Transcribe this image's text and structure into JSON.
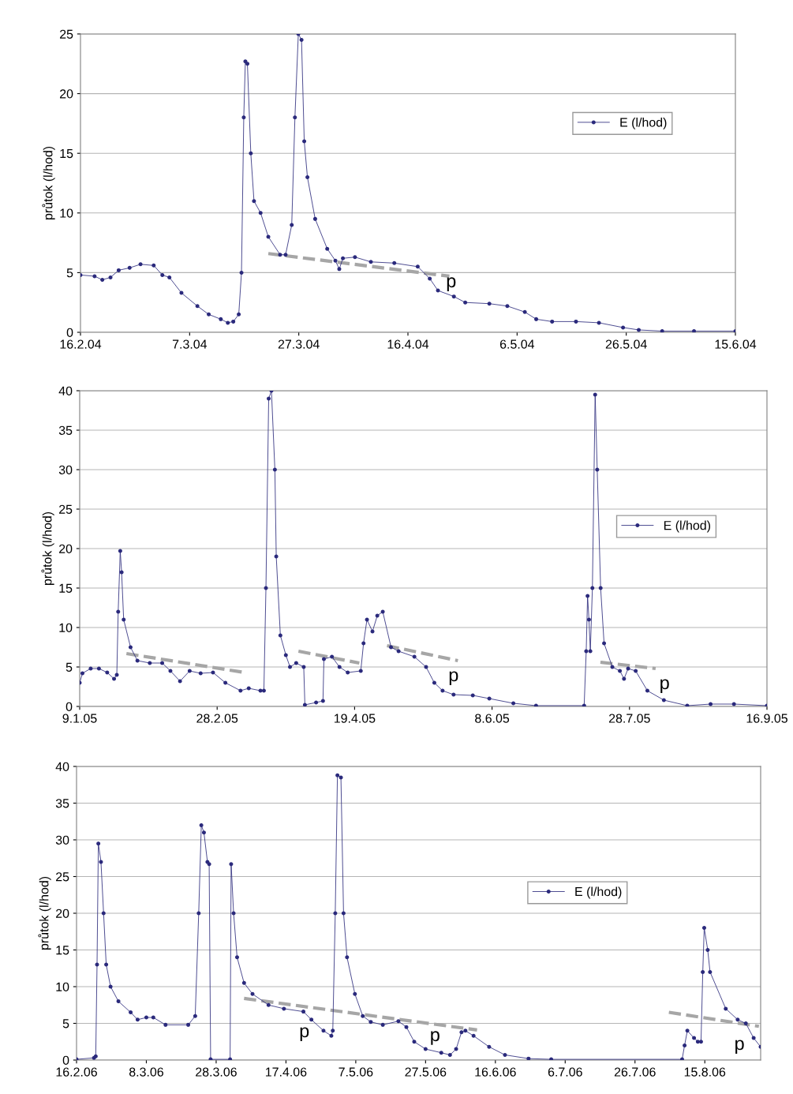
{
  "chart_data": [
    {
      "type": "line",
      "ylabel": "průtok (l/hod)",
      "xlim": [
        "2004-02-16",
        "2004-06-15"
      ],
      "ylim": [
        0,
        25
      ],
      "yticks": [
        0,
        5,
        10,
        15,
        20,
        25
      ],
      "xticks": [
        {
          "value": "2004-02-16",
          "label": "16.2.04"
        },
        {
          "value": "2004-03-07",
          "label": "7.3.04"
        },
        {
          "value": "2004-03-27",
          "label": "27.3.04"
        },
        {
          "value": "2004-04-16",
          "label": "16.4.04"
        },
        {
          "value": "2004-05-06",
          "label": "6.5.04"
        },
        {
          "value": "2004-05-26",
          "label": "26.5.04"
        },
        {
          "value": "2004-06-15",
          "label": "15.6.04"
        }
      ],
      "grid": "y",
      "legend": "right",
      "marker": "circle",
      "line_style": "solid",
      "series": [
        {
          "name": "E (l/hod)",
          "color": "#2b2a7c",
          "x": [
            "2004-02-16",
            "2004-02-18T14:00",
            "2004-02-20",
            "2004-02-21T12:00",
            "2004-02-23",
            "2004-02-25",
            "2004-02-27",
            "2004-02-29T10:00",
            "2004-03-02",
            "2004-03-03T07:00",
            "2004-03-05T12:00",
            "2004-03-08T10:00",
            "2004-03-10T12:00",
            "2004-03-12T17:00",
            "2004-03-14",
            "2004-03-15",
            "2004-03-16",
            "2004-03-16T12:00",
            "2004-03-16T22:00",
            "2004-03-17T05:00",
            "2004-03-17T14:00",
            "2004-03-18T05:00",
            "2004-03-18T19:00",
            "2004-03-20",
            "2004-03-21T10:00",
            "2004-03-23T14:00",
            "2004-03-24T14:00",
            "2004-03-25T17:00",
            "2004-03-26T07:00",
            "2004-03-26T22:00",
            "2004-03-27T12:00",
            "2004-03-28",
            "2004-03-28T14:00",
            "2004-03-30",
            "2004-04-01T05:00",
            "2004-04-02T17:00",
            "2004-04-03T10:00",
            "2004-04-04T02:00",
            "2004-04-06T07:00",
            "2004-04-09T05:00",
            "2004-04-13T12:00",
            "2004-04-17T19:00",
            "2004-04-20",
            "2004-04-21T12:00",
            "2004-04-24T10:00",
            "2004-04-26T12:00",
            "2004-04-30T22:00",
            "2004-05-04T05:00",
            "2004-05-07T10:00",
            "2004-05-09T12:00",
            "2004-05-12T10:00",
            "2004-05-16T19:00",
            "2004-05-21",
            "2004-05-25T10:00",
            "2004-05-28T07:00",
            "2004-06-01T14:00",
            "2004-06-07T10:00",
            "2004-06-15"
          ],
          "values": [
            4.8,
            4.7,
            4.4,
            4.6,
            5.2,
            5.4,
            5.7,
            5.6,
            4.8,
            4.6,
            3.3,
            2.2,
            1.5,
            1.1,
            0.8,
            0.9,
            1.5,
            5,
            18,
            22.7,
            22.5,
            15,
            11,
            10,
            8,
            6.5,
            6.5,
            9,
            18,
            25,
            24.5,
            16,
            13,
            9.5,
            7,
            6,
            5.3,
            6.2,
            6.3,
            5.9,
            5.8,
            5.5,
            4.5,
            3.5,
            3,
            2.5,
            2.4,
            2.2,
            1.7,
            1.1,
            0.9,
            0.9,
            0.8,
            0.4,
            0.2,
            0.1,
            0.1,
            0.1
          ]
        },
        {
          "type": "line",
          "color": "#a6a6a6",
          "marker": "none",
          "line_style": "dashed",
          "x": [
            "2004-03-21T10:00",
            "2004-04-23T14:00"
          ],
          "values": [
            6.6,
            4.7
          ]
        }
      ],
      "annotations": [
        "p"
      ]
    },
    {
      "type": "line",
      "ylabel": "průtok (l/hod)",
      "xlim": [
        "2005-01-09",
        "2005-09-16"
      ],
      "ylim": [
        0,
        40
      ],
      "yticks": [
        0,
        5,
        10,
        15,
        20,
        25,
        30,
        35,
        40
      ],
      "xticks": [
        {
          "value": "2005-01-09",
          "label": "9.1.05"
        },
        {
          "value": "2005-02-28",
          "label": "28.2.05"
        },
        {
          "value": "2005-04-19",
          "label": "19.4.05"
        },
        {
          "value": "2005-06-08",
          "label": "8.6.05"
        },
        {
          "value": "2005-07-28",
          "label": "28.7.05"
        },
        {
          "value": "2005-09-16",
          "label": "16.9.05"
        }
      ],
      "grid": "y",
      "legend": "right",
      "marker": "circle",
      "line_style": "solid",
      "series": [
        {
          "name": "E (l/hod)",
          "color": "#2b2a7c",
          "x": [
            "2005-01-09",
            "2005-01-10",
            "2005-01-13",
            "2005-01-16",
            "2005-01-19",
            "2005-01-21T12:00",
            "2005-01-22T12:00",
            "2005-01-23",
            "2005-01-23T18:00",
            "2005-01-24T06:00",
            "2005-01-25",
            "2005-01-27T12:00",
            "2005-01-30",
            "2005-02-03T12:00",
            "2005-02-08",
            "2005-02-11",
            "2005-02-14T12:00",
            "2005-02-18",
            "2005-02-22",
            "2005-02-26T12:00",
            "2005-03-03",
            "2005-03-08T12:00",
            "2005-03-11T12:00",
            "2005-03-15T18:00",
            "2005-03-17",
            "2005-03-17T18:00",
            "2005-03-18T18:00",
            "2005-03-19T18:00",
            "2005-03-21",
            "2005-03-21T12:00",
            "2005-03-23",
            "2005-03-25",
            "2005-03-26T12:00",
            "2005-03-28T18:00",
            "2005-03-31T12:00",
            "2005-03-31T22:00",
            "2005-04-05",
            "2005-04-07T12:00",
            "2005-04-07T20:00",
            "2005-04-10T18:00",
            "2005-04-13T12:00",
            "2005-04-16T12:00",
            "2005-04-21T06:00",
            "2005-04-22T06:00",
            "2005-04-23T12:00",
            "2005-04-25T12:00",
            "2005-04-27T06:00",
            "2005-04-29T06:00",
            "2005-05-02T06:00",
            "2005-05-05",
            "2005-05-10T18:00",
            "2005-05-15",
            "2005-05-18",
            "2005-05-21",
            "2005-05-25",
            "2005-06-01",
            "2005-06-07",
            "2005-06-15T18:00",
            "2005-06-24",
            "2005-07-11T12:00",
            "2005-07-12T06:00",
            "2005-07-12T18:00",
            "2005-07-13T06:00",
            "2005-07-13T18:00",
            "2005-07-14T12:00",
            "2005-07-15T12:00",
            "2005-07-16T06:00",
            "2005-07-17T12:00",
            "2005-07-18T18:00",
            "2005-07-21T18:00",
            "2005-07-24T12:00",
            "2005-07-26",
            "2005-07-27T12:00",
            "2005-07-30T06:00",
            "2005-08-03T12:00",
            "2005-08-09T12:00",
            "2005-08-18",
            "2005-08-26T12:00",
            "2005-09-04",
            "2005-09-16"
          ],
          "values": [
            3,
            4.2,
            4.8,
            4.8,
            4.3,
            3.5,
            4,
            12,
            19.7,
            17,
            11,
            7.5,
            5.8,
            5.5,
            5.5,
            4.5,
            3.2,
            4.5,
            4.2,
            4.3,
            3,
            2,
            2.3,
            2,
            2,
            15,
            39,
            40,
            30,
            19,
            9,
            6.5,
            5,
            5.5,
            5,
            0.2,
            0.5,
            0.7,
            6,
            6.3,
            5,
            4.3,
            4.5,
            8,
            11,
            9.5,
            11.5,
            12,
            7.5,
            7,
            6.3,
            5,
            3,
            2,
            1.5,
            1.4,
            1,
            0.4,
            0.1,
            0.1,
            7,
            14,
            11,
            7,
            15,
            39.5,
            30,
            15,
            8,
            5,
            4.5,
            3.5,
            4.8,
            4.5,
            2,
            0.8,
            0.1,
            0.3,
            0.3,
            0.1
          ]
        },
        {
          "type": "line",
          "color": "#a6a6a6",
          "marker": "none",
          "line_style": "dashed",
          "x": [
            "2005-01-26",
            "2005-03-10"
          ],
          "values": [
            6.7,
            4.3
          ]
        },
        {
          "type": "line",
          "color": "#a6a6a6",
          "marker": "none",
          "line_style": "dashed",
          "x": [
            "2005-03-29T14:00",
            "2005-04-20T17:00"
          ],
          "values": [
            7,
            5.5
          ]
        },
        {
          "type": "line",
          "color": "#a6a6a6",
          "marker": "none",
          "line_style": "dashed",
          "x": [
            "2005-04-30T19:00",
            "2005-05-26T14:00"
          ],
          "values": [
            7.7,
            5.8
          ]
        },
        {
          "type": "line",
          "color": "#a6a6a6",
          "marker": "none",
          "line_style": "dashed",
          "x": [
            "2005-07-17T10:00",
            "2005-08-06T12:00"
          ],
          "values": [
            5.6,
            4.8
          ]
        }
      ],
      "annotations": [
        "p",
        "p"
      ]
    },
    {
      "type": "line",
      "ylabel": "průtok (l/hod)",
      "xlim": [
        "2006-02-16",
        "2006-08-31"
      ],
      "ylim": [
        0,
        40
      ],
      "yticks": [
        0,
        5,
        10,
        15,
        20,
        25,
        30,
        35,
        40
      ],
      "xticks": [
        {
          "value": "2006-02-16",
          "label": "16.2.06"
        },
        {
          "value": "2006-03-08",
          "label": "8.3.06"
        },
        {
          "value": "2006-03-28",
          "label": "28.3.06"
        },
        {
          "value": "2006-04-17",
          "label": "17.4.06"
        },
        {
          "value": "2006-05-07",
          "label": "7.5.06"
        },
        {
          "value": "2006-05-27",
          "label": "27.5.06"
        },
        {
          "value": "2006-06-16",
          "label": "16.6.06"
        },
        {
          "value": "2006-07-06",
          "label": "6.7.06"
        },
        {
          "value": "2006-07-26",
          "label": "26.7.06"
        },
        {
          "value": "2006-08-15",
          "label": "15.8.06"
        }
      ],
      "grid": "y",
      "legend": "right",
      "marker": "circle",
      "line_style": "solid",
      "series": [
        {
          "name": "E (l/hod)",
          "color": "#2b2a7c",
          "x": [
            "2006-02-16",
            "2006-02-21",
            "2006-02-21T12:00",
            "2006-02-21T21:00",
            "2006-02-22T06:00",
            "2006-02-23",
            "2006-02-23T18:00",
            "2006-02-24T12:00",
            "2006-02-25T18:00",
            "2006-02-28",
            "2006-03-03T12:00",
            "2006-03-05T12:00",
            "2006-03-08",
            "2006-03-10",
            "2006-03-13T12:00",
            "2006-03-20",
            "2006-03-22",
            "2006-03-23",
            "2006-03-23T18:00",
            "2006-03-24T12:00",
            "2006-03-25T12:00",
            "2006-03-26",
            "2006-03-26T10:00",
            "2006-04-01",
            "2006-04-01T07:00",
            "2006-04-02",
            "2006-04-03",
            "2006-04-05",
            "2006-04-07T10:00",
            "2006-04-12",
            "2006-04-16T10:00",
            "2006-04-22",
            "2006-04-24T07:00",
            "2006-04-27T18:00",
            "2006-04-30",
            "2006-04-30T10:00",
            "2006-05-01T03:00",
            "2006-05-01T18:00",
            "2006-05-02T18:00",
            "2006-05-03T12:00",
            "2006-05-04T12:00",
            "2006-05-06T18:00",
            "2006-05-09",
            "2006-05-11T07:00",
            "2006-05-14T18:00",
            "2006-05-19T05:00",
            "2006-05-21T12:00",
            "2006-05-23T18:00",
            "2006-05-27",
            "2006-05-31T12:00",
            "2006-06-03",
            "2006-06-04T18:00",
            "2006-06-06T07:00",
            "2006-06-07T10:00",
            "2006-06-09T18:00",
            "2006-06-14T05:00",
            "2006-06-18T18:00",
            "2006-06-25T12:00",
            "2006-07-02",
            "2006-08-08T12:00",
            "2006-08-09T05:00",
            "2006-08-10",
            "2006-08-11T22:00",
            "2006-08-13",
            "2006-08-13T22:00",
            "2006-08-14T10:00",
            "2006-08-14T20:00",
            "2006-08-15T20:00",
            "2006-08-16T12:00",
            "2006-08-21",
            "2006-08-24T10:00",
            "2006-08-26T18:00",
            "2006-08-29",
            "2006-08-31"
          ],
          "values": [
            0.1,
            0.3,
            0.5,
            13,
            29.5,
            27,
            20,
            13,
            10,
            8,
            6.5,
            5.5,
            5.8,
            5.8,
            4.8,
            4.8,
            6,
            20,
            32,
            31,
            27,
            26.7,
            0.1,
            0.1,
            26.7,
            20,
            14,
            10.5,
            9,
            7.5,
            7,
            6.6,
            5.5,
            4,
            3.3,
            4,
            20,
            38.8,
            38.5,
            20,
            14,
            9,
            6,
            5.2,
            4.8,
            5.3,
            4.5,
            2.5,
            1.5,
            1,
            0.7,
            1.5,
            3.8,
            4,
            3.3,
            1.8,
            0.7,
            0.2,
            0.1,
            0.1,
            2,
            4,
            3,
            2.5,
            2.5,
            12,
            18,
            15,
            12,
            7,
            5.5,
            5,
            3,
            1.8
          ]
        },
        {
          "type": "line",
          "color": "#a6a6a6",
          "marker": "none",
          "line_style": "dashed",
          "x": [
            "2006-04-05",
            "2006-06-10T18:00"
          ],
          "values": [
            8.4,
            4.1
          ]
        },
        {
          "type": "line",
          "color": "#a6a6a6",
          "marker": "none",
          "line_style": "dashed",
          "x": [
            "2006-08-04T17:00",
            "2006-08-30T12:00"
          ],
          "values": [
            6.5,
            4.6
          ]
        }
      ],
      "annotations": [
        "p",
        "p",
        "p"
      ]
    }
  ]
}
